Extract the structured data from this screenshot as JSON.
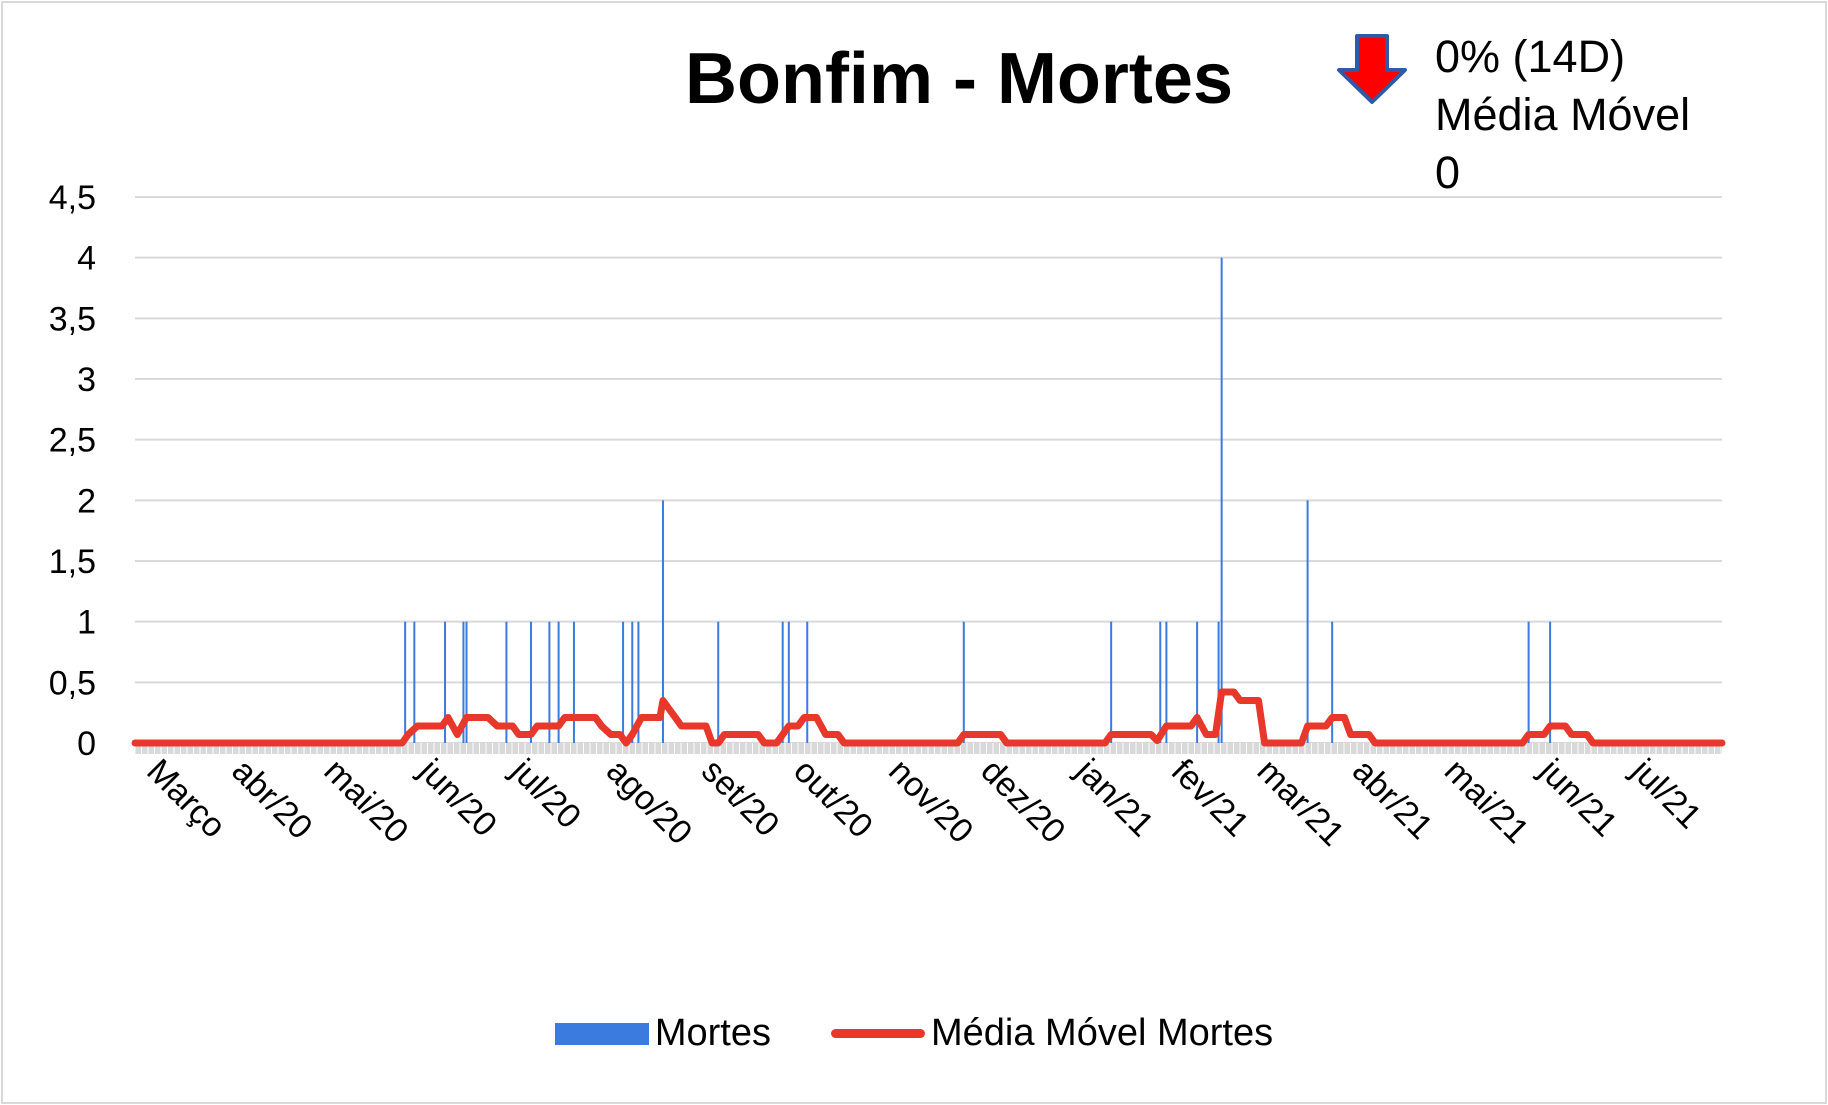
{
  "title": "Bonfim - Mortes",
  "indicator": {
    "icon": "down-arrow-icon",
    "line1": "0% (14D)",
    "line2": "Média Móvel",
    "line3": "0",
    "arrow_fill": "#ff0000",
    "arrow_stroke": "#2e5aa8"
  },
  "legend": {
    "bar_label": "Mortes",
    "line_label": "Média Móvel Mortes"
  },
  "colors": {
    "bars": "#3b7bdf",
    "line": "#e8382c",
    "grid": "#d9d9d9"
  },
  "chart_data": {
    "type": "bar",
    "title": "Bonfim - Mortes",
    "ylim": [
      0,
      4.5
    ],
    "y_ticks": [
      "0",
      "0,5",
      "1",
      "1,5",
      "2",
      "2,5",
      "3",
      "3,5",
      "4",
      "4,5"
    ],
    "x_tick_labels": [
      "Março",
      "abr/20",
      "mai/20",
      "jun/20",
      "jul/20",
      "ago/20",
      "set/20",
      "out/20",
      "nov/20",
      "dez/20",
      "jan/21",
      "fev/21",
      "mar/21",
      "abr/21",
      "mai/21",
      "jun/21",
      "jul/21"
    ],
    "x_range": [
      "2020-03-01",
      "2021-07-31"
    ],
    "grid": true,
    "legend_position": "bottom",
    "series": [
      {
        "name": "Mortes",
        "kind": "bar",
        "points": [
          {
            "date": "2020-05-28",
            "value": 1
          },
          {
            "date": "2020-05-31",
            "value": 1
          },
          {
            "date": "2020-06-10",
            "value": 1
          },
          {
            "date": "2020-06-16",
            "value": 1
          },
          {
            "date": "2020-06-17",
            "value": 1
          },
          {
            "date": "2020-06-30",
            "value": 1
          },
          {
            "date": "2020-07-08",
            "value": 1
          },
          {
            "date": "2020-07-14",
            "value": 1
          },
          {
            "date": "2020-07-17",
            "value": 1
          },
          {
            "date": "2020-07-22",
            "value": 1
          },
          {
            "date": "2020-08-07",
            "value": 1
          },
          {
            "date": "2020-08-10",
            "value": 1
          },
          {
            "date": "2020-08-12",
            "value": 1
          },
          {
            "date": "2020-08-20",
            "value": 2
          },
          {
            "date": "2020-09-07",
            "value": 1
          },
          {
            "date": "2020-09-28",
            "value": 1
          },
          {
            "date": "2020-09-30",
            "value": 1
          },
          {
            "date": "2020-10-06",
            "value": 1
          },
          {
            "date": "2020-11-26",
            "value": 1
          },
          {
            "date": "2021-01-13",
            "value": 1
          },
          {
            "date": "2021-01-29",
            "value": 1
          },
          {
            "date": "2021-01-31",
            "value": 1
          },
          {
            "date": "2021-02-10",
            "value": 1
          },
          {
            "date": "2021-02-17",
            "value": 1
          },
          {
            "date": "2021-02-18",
            "value": 4
          },
          {
            "date": "2021-03-18",
            "value": 2
          },
          {
            "date": "2021-03-26",
            "value": 1
          },
          {
            "date": "2021-05-29",
            "value": 1
          },
          {
            "date": "2021-06-05",
            "value": 1
          }
        ]
      },
      {
        "name": "Média Móvel Mortes",
        "kind": "line",
        "points": [
          {
            "date": "2020-03-01",
            "value": 0
          },
          {
            "date": "2020-05-27",
            "value": 0
          },
          {
            "date": "2020-05-29",
            "value": 0.07
          },
          {
            "date": "2020-06-01",
            "value": 0.14
          },
          {
            "date": "2020-06-09",
            "value": 0.14
          },
          {
            "date": "2020-06-11",
            "value": 0.21
          },
          {
            "date": "2020-06-14",
            "value": 0.07
          },
          {
            "date": "2020-06-17",
            "value": 0.21
          },
          {
            "date": "2020-06-24",
            "value": 0.21
          },
          {
            "date": "2020-06-27",
            "value": 0.14
          },
          {
            "date": "2020-07-02",
            "value": 0.14
          },
          {
            "date": "2020-07-04",
            "value": 0.07
          },
          {
            "date": "2020-07-08",
            "value": 0.07
          },
          {
            "date": "2020-07-10",
            "value": 0.14
          },
          {
            "date": "2020-07-17",
            "value": 0.14
          },
          {
            "date": "2020-07-19",
            "value": 0.21
          },
          {
            "date": "2020-07-29",
            "value": 0.21
          },
          {
            "date": "2020-07-31",
            "value": 0.14
          },
          {
            "date": "2020-08-03",
            "value": 0.07
          },
          {
            "date": "2020-08-06",
            "value": 0.07
          },
          {
            "date": "2020-08-08",
            "value": 0
          },
          {
            "date": "2020-08-10",
            "value": 0.07
          },
          {
            "date": "2020-08-13",
            "value": 0.21
          },
          {
            "date": "2020-08-19",
            "value": 0.21
          },
          {
            "date": "2020-08-20",
            "value": 0.35
          },
          {
            "date": "2020-08-22",
            "value": 0.28
          },
          {
            "date": "2020-08-24",
            "value": 0.21
          },
          {
            "date": "2020-08-26",
            "value": 0.14
          },
          {
            "date": "2020-09-03",
            "value": 0.14
          },
          {
            "date": "2020-09-05",
            "value": 0
          },
          {
            "date": "2020-09-07",
            "value": 0
          },
          {
            "date": "2020-09-09",
            "value": 0.07
          },
          {
            "date": "2020-09-20",
            "value": 0.07
          },
          {
            "date": "2020-09-22",
            "value": 0
          },
          {
            "date": "2020-09-26",
            "value": 0
          },
          {
            "date": "2020-09-30",
            "value": 0.14
          },
          {
            "date": "2020-10-03",
            "value": 0.14
          },
          {
            "date": "2020-10-05",
            "value": 0.21
          },
          {
            "date": "2020-10-09",
            "value": 0.21
          },
          {
            "date": "2020-10-12",
            "value": 0.07
          },
          {
            "date": "2020-10-16",
            "value": 0.07
          },
          {
            "date": "2020-10-18",
            "value": 0
          },
          {
            "date": "2020-11-24",
            "value": 0
          },
          {
            "date": "2020-11-26",
            "value": 0.07
          },
          {
            "date": "2020-12-08",
            "value": 0.07
          },
          {
            "date": "2020-12-10",
            "value": 0
          },
          {
            "date": "2021-01-11",
            "value": 0
          },
          {
            "date": "2021-01-13",
            "value": 0.07
          },
          {
            "date": "2021-01-26",
            "value": 0.07
          },
          {
            "date": "2021-01-28",
            "value": 0.02
          },
          {
            "date": "2021-01-31",
            "value": 0.14
          },
          {
            "date": "2021-02-08",
            "value": 0.14
          },
          {
            "date": "2021-02-10",
            "value": 0.21
          },
          {
            "date": "2021-02-13",
            "value": 0.07
          },
          {
            "date": "2021-02-16",
            "value": 0.07
          },
          {
            "date": "2021-02-18",
            "value": 0.42
          },
          {
            "date": "2021-02-22",
            "value": 0.42
          },
          {
            "date": "2021-02-24",
            "value": 0.35
          },
          {
            "date": "2021-03-02",
            "value": 0.35
          },
          {
            "date": "2021-03-04",
            "value": 0
          },
          {
            "date": "2021-03-16",
            "value": 0
          },
          {
            "date": "2021-03-18",
            "value": 0.14
          },
          {
            "date": "2021-03-24",
            "value": 0.14
          },
          {
            "date": "2021-03-26",
            "value": 0.21
          },
          {
            "date": "2021-03-30",
            "value": 0.21
          },
          {
            "date": "2021-04-01",
            "value": 0.07
          },
          {
            "date": "2021-04-07",
            "value": 0.07
          },
          {
            "date": "2021-04-09",
            "value": 0
          },
          {
            "date": "2021-05-27",
            "value": 0
          },
          {
            "date": "2021-05-29",
            "value": 0.07
          },
          {
            "date": "2021-06-03",
            "value": 0.07
          },
          {
            "date": "2021-06-05",
            "value": 0.14
          },
          {
            "date": "2021-06-10",
            "value": 0.14
          },
          {
            "date": "2021-06-12",
            "value": 0.07
          },
          {
            "date": "2021-06-17",
            "value": 0.07
          },
          {
            "date": "2021-06-19",
            "value": 0
          },
          {
            "date": "2021-07-31",
            "value": 0
          }
        ]
      }
    ]
  }
}
